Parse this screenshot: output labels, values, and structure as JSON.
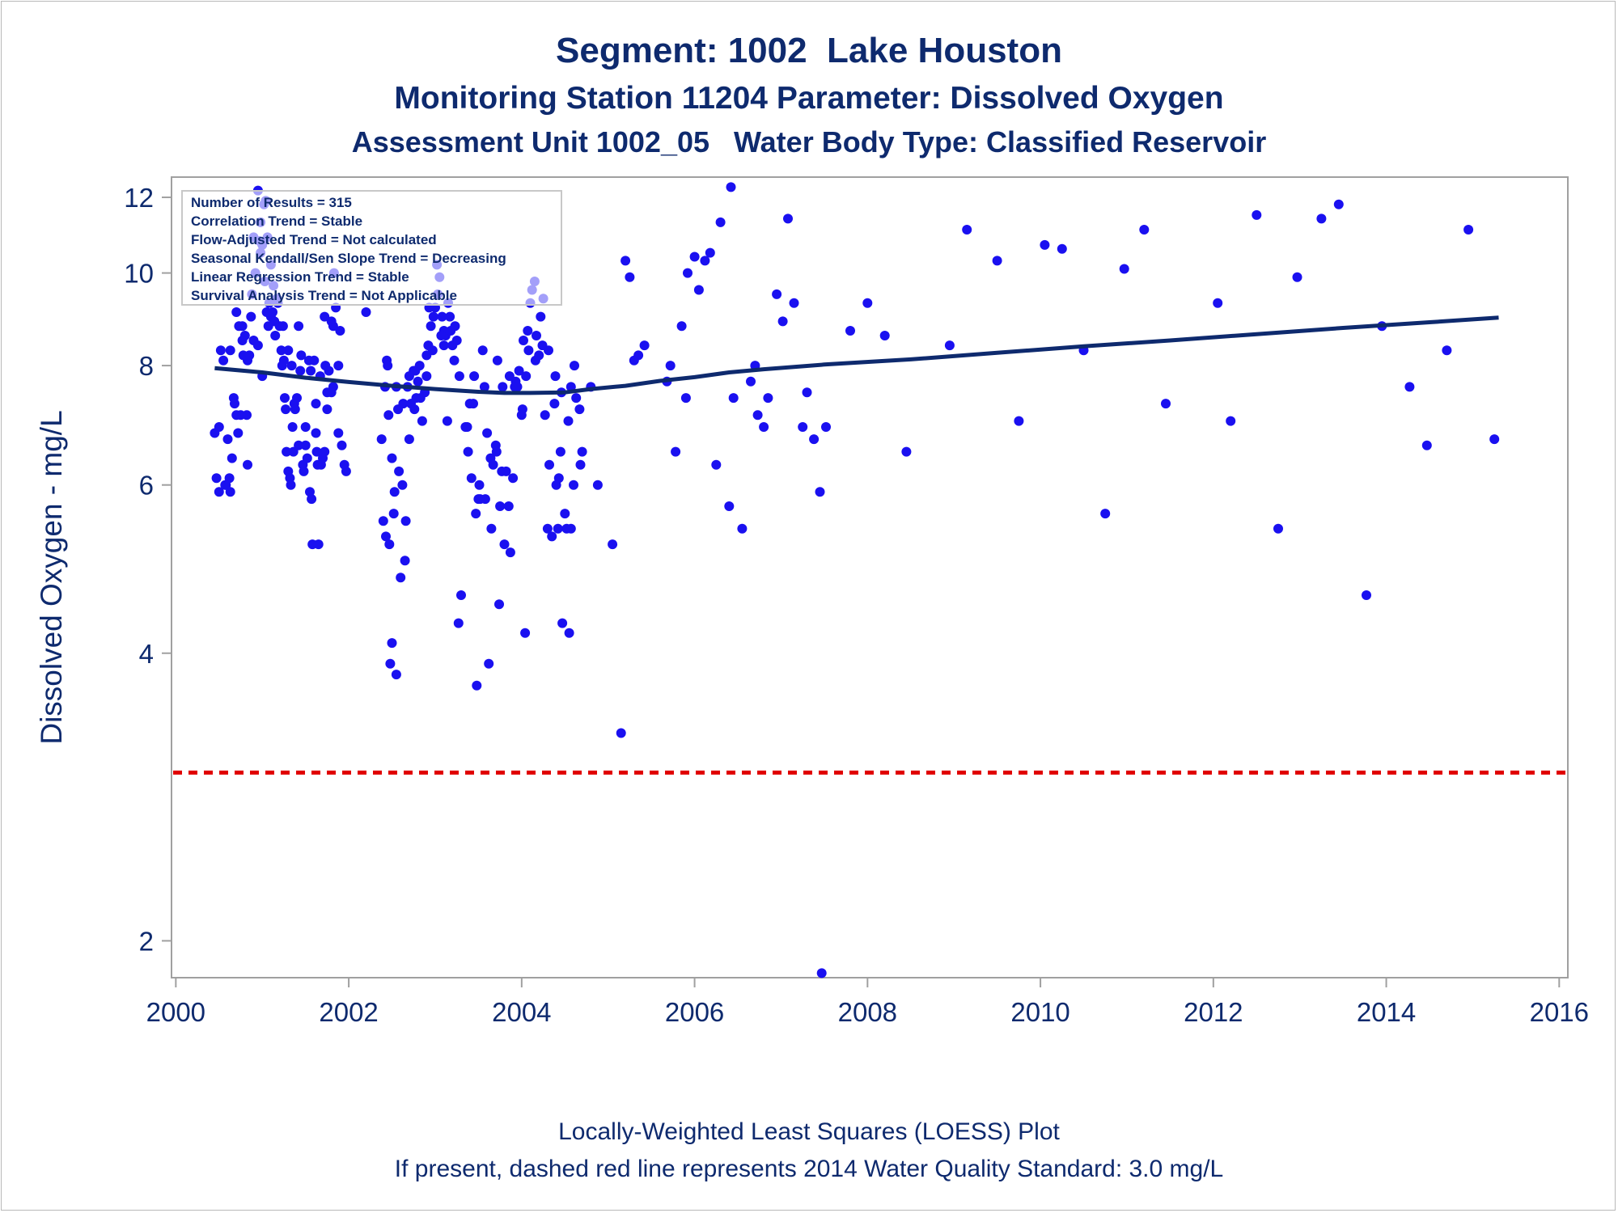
{
  "titles": {
    "line1": "Segment: 1002  Lake Houston",
    "line2": "Monitoring Station 11204 Parameter: Dissolved Oxygen",
    "line3": "Assessment Unit 1002_05   Water Body Type: Classified Reservoir"
  },
  "footnotes": {
    "line1": "Locally-Weighted Least Squares (LOESS) Plot",
    "line2": "If present, dashed red line represents 2014 Water Quality Standard: 3.0 mg/L"
  },
  "stats_box": [
    "Number of Results = 315",
    "Correlation Trend = Stable",
    "Flow-Adjusted Trend = Not calculated",
    "Seasonal Kendall/Sen Slope Trend = Decreasing",
    "Linear Regression Trend = Stable",
    "Survival Analysis Trend = Not Applicable"
  ],
  "colors": {
    "points": "#1a10f0",
    "loess": "#0e2a6e",
    "standard_line": "#e00000",
    "text": "#0e2a6e",
    "frame": "#a0a0a0"
  },
  "chart_data": {
    "type": "scatter",
    "title": "Segment: 1002  Lake Houston",
    "xlabel": "",
    "ylabel": "Dissolved Oxygen - mg/L",
    "x_scale": "linear (decimal year)",
    "y_scale": "log",
    "xlim": [
      1999.95,
      2016.1
    ],
    "ylim": [
      1.83,
      12.6
    ],
    "x_ticks": [
      2000,
      2002,
      2004,
      2006,
      2008,
      2010,
      2012,
      2014,
      2016
    ],
    "y_ticks": [
      2,
      4,
      6,
      8,
      10,
      12
    ],
    "grid": false,
    "legend": "none",
    "reference_line": {
      "name": "2014 Water Quality Standard",
      "y": 3.0,
      "style": "dashed",
      "color": "#e00000"
    },
    "loess": {
      "x": [
        2000.45,
        2001.0,
        2001.5,
        2002.0,
        2002.5,
        2003.0,
        2003.5,
        2003.8,
        2004.1,
        2004.5,
        2004.8,
        2005.2,
        2005.6,
        2006.0,
        2006.4,
        2006.8,
        2007.5,
        2008.5,
        2009.5,
        2010.5,
        2011.5,
        2012.5,
        2013.5,
        2014.5,
        2015.3
      ],
      "y": [
        7.95,
        7.87,
        7.77,
        7.69,
        7.62,
        7.56,
        7.51,
        7.49,
        7.49,
        7.5,
        7.56,
        7.62,
        7.71,
        7.78,
        7.87,
        7.93,
        8.02,
        8.12,
        8.25,
        8.38,
        8.5,
        8.63,
        8.76,
        8.88,
        8.98
      ]
    },
    "series": [
      {
        "x": [
          2000.45,
          2000.47,
          2000.5,
          2000.52,
          2000.55,
          2000.58,
          2000.6,
          2000.62,
          2000.63,
          2000.65,
          2000.67,
          2000.68,
          2000.7,
          2000.72,
          2000.73,
          2000.75,
          2000.77,
          2000.78,
          2000.8,
          2000.82,
          2000.83,
          2000.85,
          2000.87,
          2000.88,
          2000.9,
          2000.92,
          2000.95,
          2000.97,
          2000.98,
          2001.0,
          2001.02,
          2001.03,
          2001.05,
          2001.07,
          2001.08,
          2001.1,
          2001.12,
          2001.13,
          2001.15,
          2001.17,
          2001.2,
          2001.22,
          2001.23,
          2001.25,
          2001.27,
          2001.28,
          2001.3,
          2001.32,
          2001.33,
          2001.35,
          2001.37,
          2001.38,
          2001.4,
          2001.42,
          2001.45,
          2001.47,
          2001.48,
          2001.5,
          2001.52,
          2001.55,
          2001.57,
          2001.58,
          2001.6,
          2001.62,
          2001.63,
          2001.65,
          2001.67,
          2001.7,
          2001.72,
          2001.73,
          2001.75,
          2001.77,
          2001.8,
          2001.82,
          2001.83,
          2001.85,
          2001.88,
          2001.9,
          2001.92,
          2001.95,
          2001.97,
          2000.5,
          2000.57,
          2000.63,
          2000.7,
          2000.77,
          2000.83,
          2000.9,
          2000.95,
          2001.0,
          2001.04,
          2001.1,
          2001.18,
          2001.24,
          2001.3,
          2001.36,
          2001.42,
          2001.5,
          2001.56,
          2001.62,
          2001.68,
          2001.75,
          2001.82,
          2001.88,
          2000.98,
          2001.06,
          2001.14,
          2001.26,
          2001.34,
          2001.44,
          2001.54,
          2001.64,
          2001.72,
          2001.8,
          2002.2,
          2002.38,
          2002.4,
          2002.42,
          2002.44,
          2002.45,
          2002.47,
          2002.48,
          2002.5,
          2002.52,
          2002.53,
          2002.55,
          2002.58,
          2002.6,
          2002.62,
          2002.65,
          2002.68,
          2002.7,
          2002.72,
          2002.75,
          2002.78,
          2002.8,
          2002.82,
          2002.85,
          2002.88,
          2002.9,
          2002.92,
          2002.95,
          2002.98,
          2003.0,
          2003.02,
          2003.05,
          2003.08,
          2003.1,
          2003.12,
          2003.15,
          2003.17,
          2003.2,
          2003.22,
          2003.25,
          2003.28,
          2003.3,
          2002.43,
          2002.5,
          2002.57,
          2002.63,
          2002.7,
          2002.77,
          2002.83,
          2002.9,
          2002.97,
          2003.03,
          2003.1,
          2003.18,
          2003.23,
          2003.27,
          2002.46,
          2002.55,
          2002.66,
          2002.76,
          2002.93,
          2003.07,
          2003.14,
          2003.35,
          2003.38,
          2003.4,
          2003.42,
          2003.45,
          2003.47,
          2003.5,
          2003.52,
          2003.55,
          2003.57,
          2003.6,
          2003.62,
          2003.65,
          2003.67,
          2003.7,
          2003.72,
          2003.75,
          2003.77,
          2003.8,
          2003.82,
          2003.85,
          2003.87,
          2003.9,
          2003.92,
          2003.95,
          2003.97,
          2004.0,
          2004.02,
          2004.05,
          2004.07,
          2004.1,
          2004.12,
          2004.15,
          2004.17,
          2004.2,
          2004.22,
          2004.25,
          2004.27,
          2004.3,
          2004.32,
          2004.35,
          2004.38,
          2004.4,
          2004.42,
          2004.45,
          2004.47,
          2004.5,
          2004.52,
          2004.55,
          2004.57,
          2004.6,
          2004.63,
          2004.67,
          2004.7,
          2004.8,
          2004.88,
          2003.37,
          2003.44,
          2003.51,
          2003.58,
          2003.64,
          2003.71,
          2003.78,
          2003.86,
          2003.93,
          2004.01,
          2004.08,
          2004.16,
          2004.24,
          2004.31,
          2004.39,
          2004.46,
          2004.54,
          2004.61,
          2004.68,
          2003.48,
          2003.74,
          2004.04,
          2004.43,
          2004.57,
          2005.05,
          2005.15,
          2005.2,
          2005.25,
          2005.3,
          2005.35,
          2005.42,
          2005.68,
          2005.72,
          2005.78,
          2005.85,
          2005.9,
          2005.92,
          2006.0,
          2006.05,
          2006.12,
          2006.18,
          2006.25,
          2006.3,
          2006.4,
          2006.42,
          2006.45,
          2006.55,
          2006.65,
          2006.7,
          2006.73,
          2006.8,
          2006.85,
          2006.95,
          2007.02,
          2007.08,
          2007.15,
          2007.25,
          2007.3,
          2007.38,
          2007.45,
          2007.47,
          2007.52,
          2007.8,
          2008.0,
          2008.2,
          2008.45,
          2008.95,
          2009.15,
          2009.5,
          2009.75,
          2010.05,
          2010.25,
          2010.5,
          2010.75,
          2010.97,
          2011.2,
          2011.45,
          2012.05,
          2012.2,
          2012.5,
          2012.75,
          2012.97,
          2013.25,
          2013.45,
          2013.77,
          2013.95,
          2014.27,
          2014.47,
          2014.7,
          2014.95,
          2015.25
        ],
        "y": [
          6.8,
          6.1,
          6.9,
          8.3,
          8.1,
          6.0,
          6.7,
          6.1,
          5.9,
          6.4,
          7.4,
          7.3,
          7.1,
          6.8,
          8.8,
          7.1,
          8.5,
          8.2,
          8.6,
          7.1,
          6.3,
          8.2,
          9.0,
          9.5,
          10.9,
          10.0,
          12.2,
          10.8,
          11.3,
          10.7,
          11.8,
          9.8,
          9.1,
          8.8,
          9.3,
          9.0,
          9.1,
          9.7,
          8.6,
          9.4,
          8.8,
          8.3,
          8.0,
          8.1,
          7.2,
          6.5,
          6.2,
          6.1,
          6.0,
          6.9,
          7.3,
          7.2,
          7.4,
          8.8,
          8.2,
          6.3,
          6.2,
          6.9,
          6.4,
          5.9,
          5.8,
          5.2,
          8.1,
          6.8,
          6.5,
          5.2,
          7.8,
          6.4,
          9.0,
          8.0,
          7.5,
          7.9,
          8.9,
          8.8,
          10.0,
          9.2,
          8.0,
          8.7,
          6.6,
          6.3,
          6.2,
          5.9,
          6.0,
          8.3,
          9.1,
          8.8,
          8.1,
          8.5,
          8.4,
          7.8,
          11.9,
          10.2,
          9.3,
          8.8,
          8.3,
          6.5,
          6.6,
          6.6,
          7.9,
          7.3,
          6.3,
          7.2,
          7.6,
          6.8,
          10.5,
          10.9,
          8.9,
          7.4,
          8.0,
          7.9,
          8.1,
          6.3,
          6.5,
          7.5,
          9.1,
          6.7,
          5.5,
          7.6,
          8.1,
          8.0,
          5.2,
          3.9,
          4.1,
          5.6,
          5.9,
          3.8,
          6.2,
          4.8,
          6.0,
          5.0,
          7.6,
          6.7,
          7.3,
          7.9,
          7.4,
          7.7,
          8.0,
          7.0,
          7.5,
          8.2,
          8.4,
          8.8,
          9.0,
          9.2,
          10.2,
          9.9,
          9.0,
          8.7,
          8.6,
          9.3,
          9.0,
          8.4,
          8.1,
          8.5,
          7.8,
          4.6,
          5.3,
          6.4,
          7.2,
          7.3,
          7.8,
          7.9,
          7.4,
          7.8,
          8.3,
          9.5,
          8.4,
          8.7,
          8.8,
          4.3,
          7.1,
          7.6,
          5.5,
          7.2,
          9.2,
          8.6,
          7.0,
          6.9,
          6.5,
          7.3,
          6.1,
          7.8,
          5.6,
          5.8,
          5.8,
          8.3,
          7.6,
          6.8,
          3.9,
          5.4,
          6.3,
          6.6,
          8.1,
          5.7,
          6.2,
          5.2,
          6.2,
          5.7,
          5.1,
          6.1,
          7.6,
          7.6,
          7.9,
          7.1,
          8.5,
          7.8,
          8.7,
          9.3,
          9.6,
          9.8,
          8.6,
          8.2,
          9.0,
          9.4,
          7.1,
          5.4,
          6.3,
          5.3,
          7.3,
          6.0,
          5.4,
          6.5,
          4.3,
          5.6,
          5.4,
          4.2,
          5.4,
          6.0,
          7.4,
          7.2,
          6.5,
          7.6,
          6.0,
          6.9,
          7.3,
          6.0,
          5.8,
          6.4,
          6.5,
          7.6,
          7.8,
          7.7,
          7.2,
          8.3,
          8.1,
          8.4,
          8.3,
          7.8,
          7.5,
          7.0,
          8.0,
          6.3,
          3.7,
          4.5,
          4.2,
          6.1,
          7.6,
          5.2,
          3.3,
          10.3,
          9.9,
          8.1,
          8.2,
          8.4,
          7.7,
          8.0,
          6.5,
          8.8,
          7.4,
          10.0,
          10.4,
          9.6,
          10.3,
          10.5,
          6.3,
          11.3,
          5.7,
          12.3,
          7.4,
          5.4,
          7.7,
          8.0,
          7.1,
          6.9,
          7.4,
          9.5,
          8.9,
          11.4,
          9.3,
          6.9,
          7.5,
          6.7,
          5.9,
          1.85,
          6.9,
          8.7,
          9.3,
          8.6,
          6.5,
          8.4,
          11.1,
          10.3,
          7.0,
          10.7,
          10.6,
          8.3,
          5.6,
          10.1,
          11.1,
          7.3,
          9.3,
          7.0,
          11.5,
          5.4,
          9.9,
          11.4,
          11.8,
          4.6,
          8.8,
          7.6,
          6.6,
          8.3,
          11.1,
          6.7
        ]
      }
    ]
  }
}
